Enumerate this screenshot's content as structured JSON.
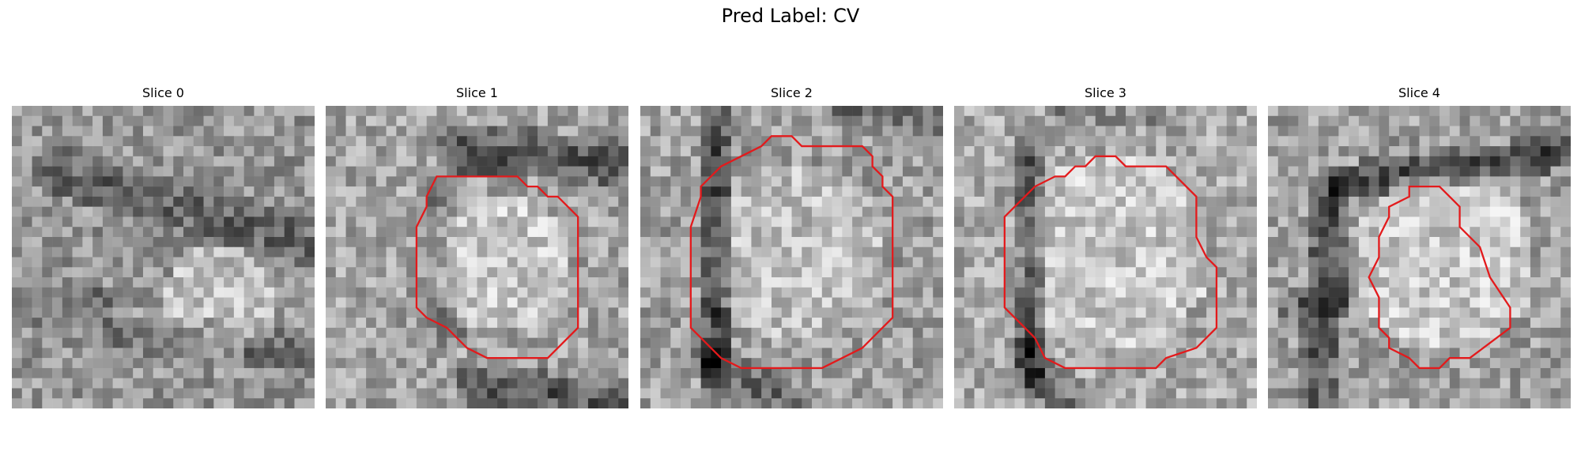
{
  "figure": {
    "title": "Pred Label: CV"
  },
  "slices": [
    {
      "title": "Slice 0",
      "has_contour": false
    },
    {
      "title": "Slice 1",
      "has_contour": true
    },
    {
      "title": "Slice 2",
      "has_contour": true
    },
    {
      "title": "Slice 3",
      "has_contour": true
    },
    {
      "title": "Slice 4",
      "has_contour": true
    }
  ],
  "colors": {
    "contour": "#e31a1c",
    "background": "#ffffff"
  },
  "colormap": "grayscale"
}
